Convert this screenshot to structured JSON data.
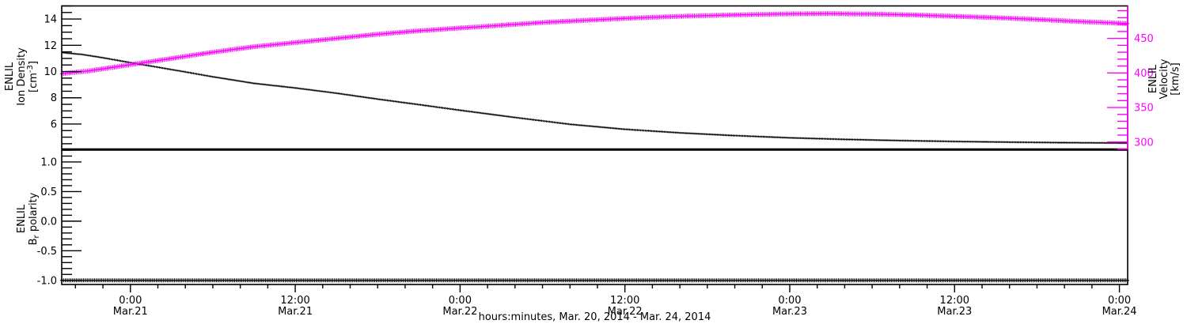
{
  "figure": {
    "background": "#ffffff",
    "frame_color": "#000000",
    "accent_magenta": "#ff00ff"
  },
  "x_axis": {
    "title": "hours:minutes, Mar. 20, 2014 - Mar. 24, 2014",
    "range_hours": [
      -5.0,
      72.6
    ],
    "minor_step_hours": 2,
    "major_ticks": [
      {
        "hours": 0,
        "time": "0:00",
        "date": "Mar.21"
      },
      {
        "hours": 12,
        "time": "12:00",
        "date": "Mar.21"
      },
      {
        "hours": 24,
        "time": "0:00",
        "date": "Mar.22"
      },
      {
        "hours": 36,
        "time": "12:00",
        "date": "Mar.22"
      },
      {
        "hours": 48,
        "time": "0:00",
        "date": "Mar.23"
      },
      {
        "hours": 60,
        "time": "12:00",
        "date": "Mar.23"
      },
      {
        "hours": 72,
        "time": "0:00",
        "date": "Mar.24"
      }
    ]
  },
  "panels": [
    {
      "id": "density-velocity",
      "left_axis": {
        "label_plain": "ENLIL Ion Density [cm^-3]",
        "title_lines": [
          {
            "text": "ENLIL"
          },
          {
            "text": "Ion Density"
          },
          {
            "segments": [
              {
                "t": "[cm"
              },
              {
                "t": "-3",
                "sup": true
              },
              {
                "t": "]"
              }
            ]
          }
        ],
        "color": "#000000",
        "range": [
          4.1,
          15.0
        ],
        "minor_step": 0.5,
        "major_ticks": [
          {
            "value": 6,
            "label": "6"
          },
          {
            "value": 8,
            "label": "8"
          },
          {
            "value": 10,
            "label": "10"
          },
          {
            "value": 12,
            "label": "12"
          },
          {
            "value": 14,
            "label": "14"
          }
        ]
      },
      "right_axis": {
        "label_plain": "ENLIL Velocity [km/s]",
        "title_lines": [
          {
            "text": "ENLIL"
          },
          {
            "text": "Velocity"
          },
          {
            "text": "[km/s]"
          }
        ],
        "color": "#ff00ff",
        "title_color": "#000000",
        "range": [
          290,
          497
        ],
        "minor_step": 10,
        "major_ticks": [
          {
            "value": 300,
            "label": "300"
          },
          {
            "value": 350,
            "label": "350"
          },
          {
            "value": 400,
            "label": "400"
          },
          {
            "value": 450,
            "label": "450"
          }
        ]
      }
    },
    {
      "id": "br-polarity",
      "left_axis": {
        "label_plain": "ENLIL Br polarity",
        "title_lines": [
          {
            "text": "ENLIL"
          },
          {
            "segments": [
              {
                "t": "B"
              },
              {
                "t": "r",
                "sub": true
              },
              {
                "t": " polarity"
              }
            ]
          }
        ],
        "color": "#000000",
        "range": [
          -1.07,
          1.2
        ],
        "minor_step": 0.1,
        "major_ticks": [
          {
            "value": 1.0,
            "label": "1.0"
          },
          {
            "value": 0.5,
            "label": "0.5"
          },
          {
            "value": 0.0,
            "label": "0.0"
          },
          {
            "value": -0.5,
            "label": "-0.5"
          },
          {
            "value": -1.0,
            "label": "-1.0"
          }
        ]
      }
    }
  ],
  "chart_data": {
    "type": "line",
    "x_unit": "hours since Mar. 21, 2014 00:00 UT",
    "xlabel": "hours:minutes, Mar. 20, 2014 - Mar. 24, 2014",
    "series": [
      {
        "name": "ENLIL Ion Density",
        "panel": "top",
        "axis": "left",
        "color": "#000000",
        "style": "fine-dots",
        "x": [
          -5.0,
          -3.5,
          -2,
          0,
          2,
          4,
          6,
          9,
          12,
          15,
          18,
          21,
          24,
          28,
          32,
          36,
          40,
          44,
          48,
          52,
          56,
          60,
          64,
          68,
          72.6
        ],
        "y": [
          11.45,
          11.3,
          11.05,
          10.68,
          10.33,
          9.97,
          9.6,
          9.1,
          8.75,
          8.35,
          7.9,
          7.48,
          7.05,
          6.5,
          5.98,
          5.6,
          5.33,
          5.12,
          4.95,
          4.83,
          4.74,
          4.67,
          4.62,
          4.58,
          4.55
        ]
      },
      {
        "name": "ENLIL Velocity",
        "panel": "top",
        "axis": "right",
        "color": "#ff00ff",
        "style": "plus-band",
        "x": [
          -5.0,
          -3,
          0,
          3,
          6,
          9,
          12,
          15,
          18,
          21,
          24,
          27,
          30,
          33,
          36,
          40,
          44,
          48,
          51,
          54,
          57,
          60,
          63,
          66,
          69,
          72.6
        ],
        "y": [
          399,
          403,
          412,
          421,
          430,
          438,
          444,
          450,
          456,
          461,
          465,
          469,
          473,
          476,
          479,
          482,
          484,
          485.5,
          485.8,
          485.2,
          484,
          482,
          480,
          477.5,
          474.5,
          471.5
        ]
      },
      {
        "name": "ENLIL Br polarity",
        "panel": "bottom",
        "axis": "left",
        "color": "#000000",
        "style": "plus-line",
        "x": [
          -5.0,
          72.6
        ],
        "y": [
          -1.0,
          -1.0
        ]
      }
    ]
  }
}
